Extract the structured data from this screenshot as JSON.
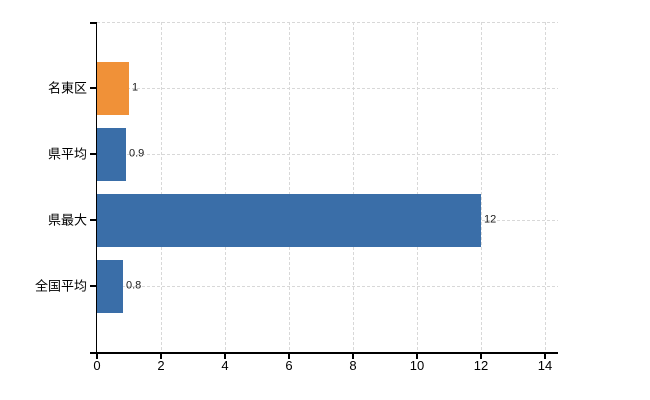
{
  "chart_data": {
    "type": "bar",
    "orientation": "horizontal",
    "categories": [
      "名東区",
      "県平均",
      "県最大",
      "全国平均"
    ],
    "values": [
      1,
      0.9,
      12,
      0.8
    ],
    "value_labels": [
      "1",
      "0.9",
      "12",
      "0.8"
    ],
    "bar_colors": [
      "#f09138",
      "#3a6ea8",
      "#3a6ea8",
      "#3a6ea8"
    ],
    "highlight_color": "#f09138",
    "series_color": "#3a6ea8",
    "xlim": [
      0,
      14.4
    ],
    "xticks": [
      0,
      2,
      4,
      6,
      8,
      10,
      12,
      14
    ],
    "xtick_labels": [
      "0",
      "2",
      "4",
      "6",
      "8",
      "10",
      "12",
      "14"
    ],
    "grid": true,
    "grid_color": "#d8d8d8",
    "axis_color": "#000000",
    "tick_label_color": "#000000",
    "value_label_color": "#1a1a1a",
    "legend": "none",
    "background": "#ffffff"
  }
}
